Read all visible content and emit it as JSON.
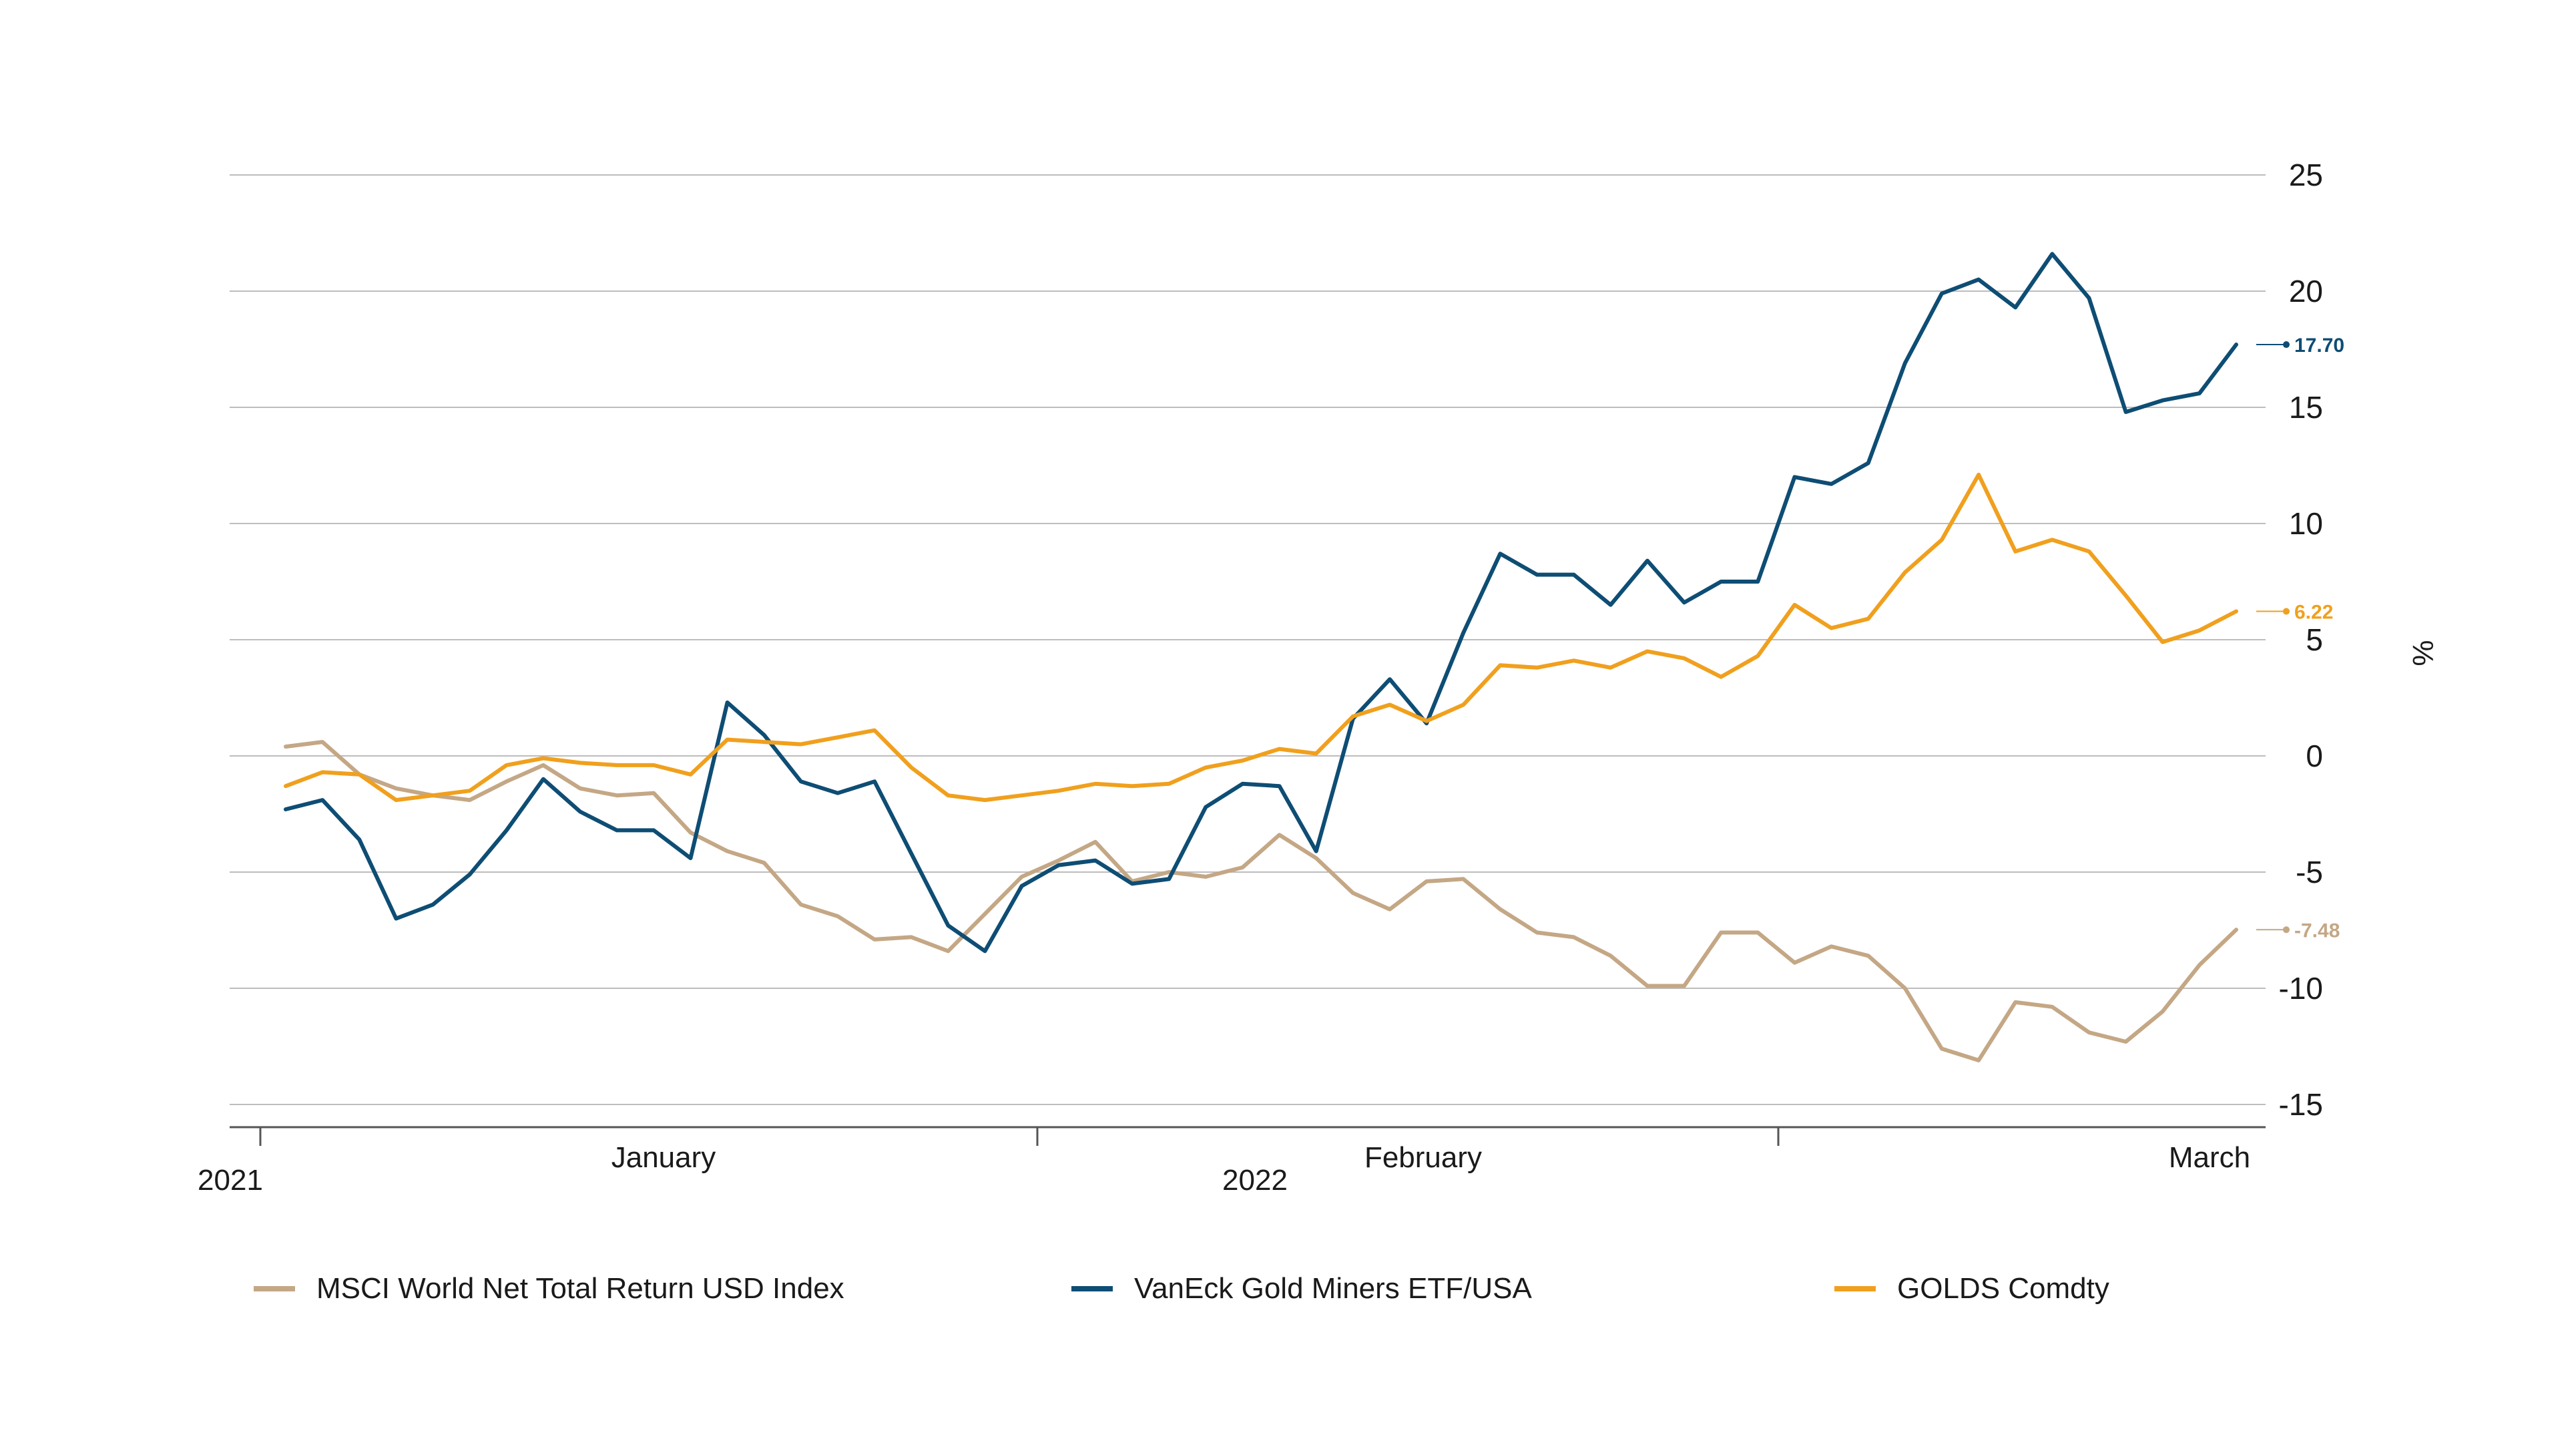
{
  "chart_data": {
    "type": "line",
    "ylabel": "%",
    "ylim": [
      -15,
      25
    ],
    "y_ticks": [
      "25",
      "20",
      "15",
      "10",
      "5",
      "0",
      "-5",
      "-10",
      "-15"
    ],
    "y_tick_values": [
      25,
      20,
      15,
      10,
      5,
      0,
      -5,
      -10,
      -15
    ],
    "x_labels": {
      "month_labels": [
        "January",
        "February",
        "March"
      ],
      "year_labels": [
        "2021",
        "2022"
      ]
    },
    "grid": true,
    "legend_position": "bottom",
    "series": [
      {
        "name": "MSCI World Net Total Return USD Index",
        "color": "#c4a785",
        "end_label": "-7.48",
        "values": [
          0.4,
          0.6,
          -0.8,
          -1.4,
          -1.7,
          -1.9,
          -1.1,
          -0.4,
          -1.4,
          -1.7,
          -1.6,
          -3.3,
          -4.1,
          -4.6,
          -6.4,
          -6.9,
          -7.9,
          -7.8,
          -8.4,
          -6.8,
          -5.2,
          -4.5,
          -3.7,
          -5.4,
          -5.0,
          -5.2,
          -4.8,
          -3.4,
          -4.4,
          -5.9,
          -6.6,
          -5.4,
          -5.3,
          -6.6,
          -7.6,
          -7.8,
          -8.6,
          -9.9,
          -9.9,
          -7.6,
          -7.6,
          -8.9,
          -8.2,
          -8.6,
          -10.0,
          -12.6,
          -13.1,
          -10.6,
          -10.8,
          -11.9,
          -12.3,
          -11.0,
          -9.0,
          -7.48
        ]
      },
      {
        "name": "VanEck Gold Miners ETF/USA",
        "color": "#0e4d74",
        "end_label": "17.70",
        "values": [
          -2.3,
          -1.9,
          -3.6,
          -7.0,
          -6.4,
          -5.1,
          -3.2,
          -1.0,
          -2.4,
          -3.2,
          -3.2,
          -4.4,
          2.3,
          0.9,
          -1.1,
          -1.6,
          -1.1,
          -4.2,
          -7.3,
          -8.4,
          -5.6,
          -4.7,
          -4.5,
          -5.5,
          -5.3,
          -2.2,
          -1.2,
          -1.3,
          -4.1,
          1.6,
          3.3,
          1.4,
          5.3,
          8.7,
          7.8,
          7.8,
          6.5,
          8.4,
          6.6,
          7.5,
          7.5,
          12.0,
          11.7,
          12.6,
          16.9,
          19.9,
          20.5,
          19.3,
          21.6,
          19.7,
          14.8,
          15.3,
          15.6,
          17.7
        ]
      },
      {
        "name": "GOLDS Comdty",
        "color": "#f0a01e",
        "end_label": "6.22",
        "values": [
          -1.3,
          -0.7,
          -0.8,
          -1.9,
          -1.7,
          -1.5,
          -0.4,
          -0.1,
          -0.3,
          -0.4,
          -0.4,
          -0.8,
          0.7,
          0.6,
          0.5,
          0.8,
          1.1,
          -0.5,
          -1.7,
          -1.9,
          -1.7,
          -1.5,
          -1.2,
          -1.3,
          -1.2,
          -0.5,
          -0.2,
          0.3,
          0.1,
          1.7,
          2.2,
          1.5,
          2.2,
          3.9,
          3.8,
          4.1,
          3.8,
          4.5,
          4.2,
          3.4,
          4.3,
          6.5,
          5.5,
          5.9,
          7.9,
          9.3,
          12.1,
          8.8,
          9.3,
          8.8,
          6.9,
          4.9,
          5.4,
          6.22
        ]
      }
    ]
  }
}
